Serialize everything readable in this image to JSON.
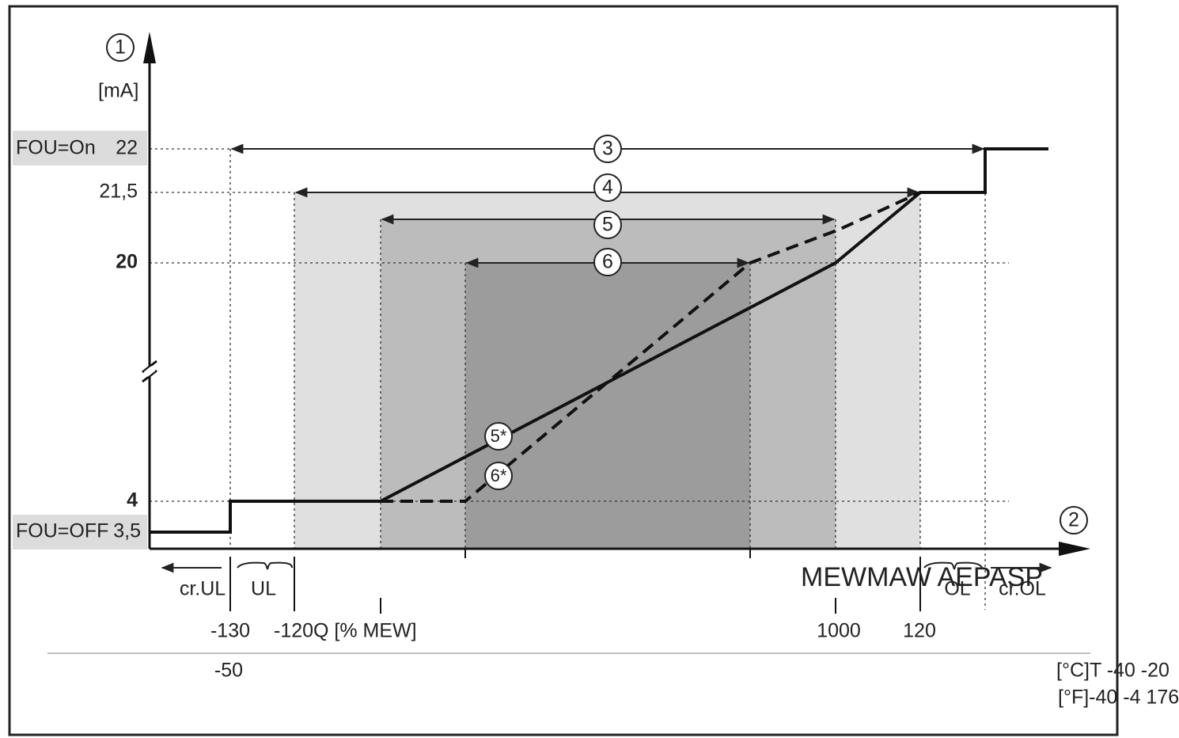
{
  "axes": {
    "y_label": "[mA]",
    "y_marker": "1",
    "x_marker": "2"
  },
  "y_levels": [
    {
      "prefix": "FOU=On",
      "label": "22"
    },
    {
      "label": "21,5"
    },
    {
      "label": "20"
    },
    {
      "label": "4"
    },
    {
      "prefix": "FOU=OFF",
      "label": "3,5"
    }
  ],
  "ranges": [
    "3",
    "4",
    "5",
    "6"
  ],
  "curves": [
    "5*",
    "6*"
  ],
  "x_labels": {
    "cr_ul": "cr.UL",
    "ul": "UL",
    "ticks": [
      "-130",
      "-120Q [% MEW]",
      "1000",
      "120"
    ],
    "overlay": "MEWMAW AEPASP",
    "ol": "OL",
    "cr_ol": "cr.OL",
    "temp_tick": "-50",
    "temp_c": "[°C]T -40 -20",
    "temp_f": "[°F]-40 -4 176"
  }
}
